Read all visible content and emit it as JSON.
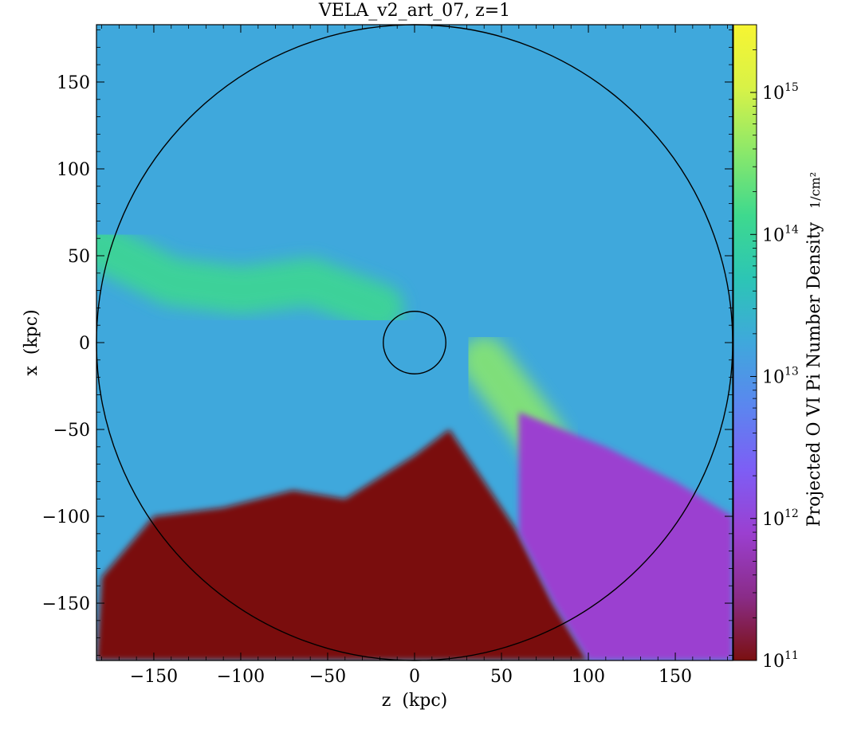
{
  "chart_data": {
    "type": "heatmap",
    "title": "VELA_v2_art_07, z=1",
    "xlabel": "z  (kpc)",
    "ylabel": "x  (kpc)",
    "xlim": [
      -183,
      183
    ],
    "ylim": [
      -183,
      183
    ],
    "x_ticks": [
      "−150",
      "−100",
      "−50",
      "0",
      "50",
      "100",
      "150"
    ],
    "x_tick_values": [
      -150,
      -100,
      -50,
      0,
      50,
      100,
      150
    ],
    "y_ticks": [
      "150",
      "100",
      "50",
      "0",
      "−50",
      "−100",
      "−150"
    ],
    "y_tick_values": [
      150,
      100,
      50,
      0,
      -50,
      -100,
      -150
    ],
    "colorbar": {
      "label": "Projected O VI Pi Number Density",
      "units": "1/cm²",
      "scale": "log",
      "range": [
        100000000000.0,
        3000000000000000.0
      ],
      "ticks": [
        {
          "base": "10",
          "exp": "15",
          "value": 1000000000000000.0
        },
        {
          "base": "10",
          "exp": "14",
          "value": 100000000000000.0
        },
        {
          "base": "10",
          "exp": "13",
          "value": 10000000000000.0
        },
        {
          "base": "10",
          "exp": "12",
          "value": 1000000000000.0
        },
        {
          "base": "10",
          "exp": "11",
          "value": 100000000000.0
        }
      ],
      "colormap": [
        "#7a1010",
        "#8a2c88",
        "#9b3fd0",
        "#7d5ef5",
        "#5b86ef",
        "#3fa8dc",
        "#2cc5b5",
        "#3ed98e",
        "#8be86a",
        "#d8f247",
        "#f7f532"
      ]
    },
    "circles": [
      {
        "name": "outer",
        "center": [
          0,
          0
        ],
        "radius_kpc": 183
      },
      {
        "name": "inner",
        "center": [
          0,
          0
        ],
        "radius_kpc": 18
      }
    ],
    "structures": [
      {
        "kind": "filament",
        "level": 200000000000000.0,
        "points": [
          [
            -180,
            55
          ],
          [
            -140,
            35
          ],
          [
            -100,
            30
          ],
          [
            -60,
            35
          ],
          [
            -20,
            20
          ]
        ]
      },
      {
        "kind": "filament",
        "level": 250000000000000.0,
        "points": [
          [
            40,
            -10
          ],
          [
            55,
            -30
          ],
          [
            70,
            -50
          ],
          [
            85,
            -75
          ]
        ]
      },
      {
        "kind": "low-density-region",
        "level": 100000000000.0,
        "points": [
          [
            -180,
            -135
          ],
          [
            -150,
            -100
          ],
          [
            -110,
            -95
          ],
          [
            -70,
            -85
          ],
          [
            -40,
            -90
          ],
          [
            0,
            -65
          ],
          [
            20,
            -50
          ],
          [
            40,
            -80
          ],
          [
            60,
            -110
          ],
          [
            80,
            -150
          ],
          [
            100,
            -183
          ],
          [
            -183,
            -183
          ]
        ]
      },
      {
        "kind": "low-density-region",
        "level": 1000000000000.0,
        "points": [
          [
            60,
            -40
          ],
          [
            110,
            -60
          ],
          [
            150,
            -80
          ],
          [
            183,
            -100
          ],
          [
            183,
            -183
          ],
          [
            100,
            -183
          ],
          [
            80,
            -150
          ],
          [
            60,
            -110
          ]
        ]
      }
    ]
  }
}
